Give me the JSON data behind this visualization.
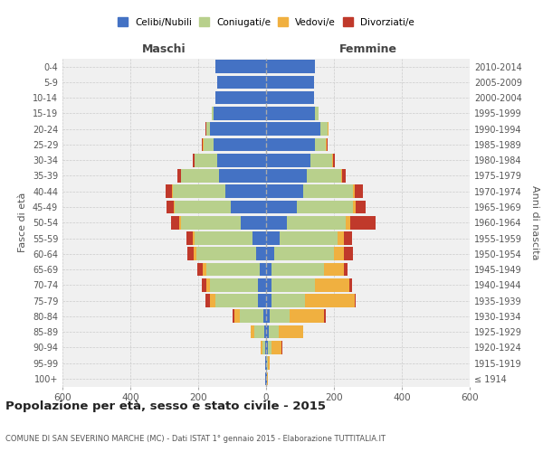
{
  "age_groups": [
    "100+",
    "95-99",
    "90-94",
    "85-89",
    "80-84",
    "75-79",
    "70-74",
    "65-69",
    "60-64",
    "55-59",
    "50-54",
    "45-49",
    "40-44",
    "35-39",
    "30-34",
    "25-29",
    "20-24",
    "15-19",
    "10-14",
    "5-9",
    "0-4"
  ],
  "birth_years": [
    "≤ 1914",
    "1915-1919",
    "1920-1924",
    "1925-1929",
    "1930-1934",
    "1935-1939",
    "1940-1944",
    "1945-1949",
    "1950-1954",
    "1955-1959",
    "1960-1964",
    "1965-1969",
    "1970-1974",
    "1975-1979",
    "1980-1984",
    "1985-1989",
    "1990-1994",
    "1995-1999",
    "2000-2004",
    "2005-2009",
    "2010-2014"
  ],
  "maschi": {
    "celibi": [
      2,
      2,
      3,
      5,
      8,
      25,
      25,
      20,
      30,
      40,
      75,
      105,
      120,
      140,
      145,
      155,
      165,
      155,
      150,
      145,
      150
    ],
    "coniugati": [
      0,
      2,
      8,
      30,
      70,
      125,
      140,
      155,
      175,
      170,
      175,
      165,
      155,
      110,
      65,
      30,
      10,
      5,
      0,
      0,
      0
    ],
    "vedovi": [
      0,
      0,
      5,
      10,
      15,
      15,
      10,
      12,
      8,
      5,
      5,
      3,
      3,
      2,
      2,
      2,
      2,
      0,
      0,
      0,
      0
    ],
    "divorziati": [
      0,
      0,
      0,
      0,
      5,
      15,
      15,
      15,
      20,
      20,
      25,
      20,
      18,
      10,
      5,
      2,
      2,
      0,
      0,
      0,
      0
    ]
  },
  "femmine": {
    "nubili": [
      2,
      3,
      5,
      8,
      10,
      15,
      15,
      15,
      25,
      40,
      60,
      90,
      110,
      120,
      130,
      145,
      160,
      145,
      140,
      140,
      145
    ],
    "coniugate": [
      0,
      2,
      10,
      30,
      60,
      100,
      130,
      155,
      175,
      170,
      175,
      165,
      145,
      100,
      65,
      30,
      20,
      10,
      0,
      0,
      0
    ],
    "vedove": [
      2,
      5,
      30,
      70,
      100,
      145,
      100,
      60,
      30,
      18,
      12,
      8,
      5,
      3,
      3,
      3,
      3,
      0,
      0,
      0,
      0
    ],
    "divorziate": [
      0,
      0,
      2,
      2,
      5,
      5,
      8,
      10,
      25,
      25,
      75,
      30,
      25,
      12,
      5,
      2,
      2,
      0,
      0,
      0,
      0
    ]
  },
  "colors": {
    "celibi": "#4472c4",
    "coniugati": "#b8d08c",
    "vedovi": "#f0b040",
    "divorziati": "#c0392b"
  },
  "xlim": 600,
  "title": "Popolazione per età, sesso e stato civile - 2015",
  "subtitle": "COMUNE DI SAN SEVERINO MARCHE (MC) - Dati ISTAT 1° gennaio 2015 - Elaborazione TUTTITALIA.IT",
  "ylabel": "Fasce di età",
  "ylabel2": "Anni di nascita",
  "bg_color": "#f0f0f0",
  "grid_color": "#cccccc"
}
